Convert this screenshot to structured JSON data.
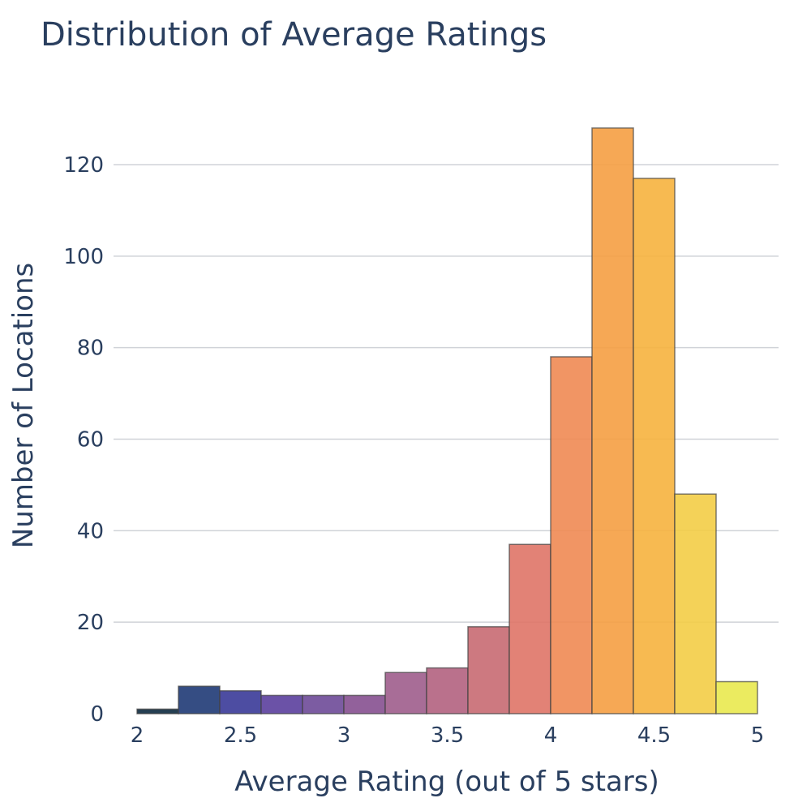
{
  "chart_data": {
    "type": "bar",
    "title": "Distribution of Average Ratings",
    "xlabel": "Average Rating (out of 5 stars)",
    "ylabel": "Number of Locations",
    "xlim": [
      2,
      5
    ],
    "ylim": [
      0,
      130
    ],
    "xticks": [
      "2",
      "2.5",
      "3",
      "3.5",
      "4",
      "4.5",
      "5"
    ],
    "yticks": [
      "0",
      "20",
      "40",
      "60",
      "80",
      "100",
      "120"
    ],
    "grid": true,
    "bin_size": 0.2,
    "bins_start": [
      2.0,
      2.2,
      2.4,
      2.6,
      2.8,
      3.0,
      3.2,
      3.4,
      3.6,
      3.8,
      4.0,
      4.2,
      4.4,
      4.6,
      4.8
    ],
    "values": [
      1,
      6,
      5,
      4,
      4,
      4,
      9,
      10,
      19,
      37,
      78,
      128,
      117,
      48,
      7
    ],
    "colors": [
      "#0d2a3f",
      "#1f3a75",
      "#3a3a98",
      "#5b3f9d",
      "#6e4a98",
      "#865090",
      "#9e5d8c",
      "#b3627f",
      "#c86a72",
      "#df7467",
      "#ef8953",
      "#f59e43",
      "#f6b23e",
      "#f3cd46",
      "#e9e94f"
    ]
  }
}
